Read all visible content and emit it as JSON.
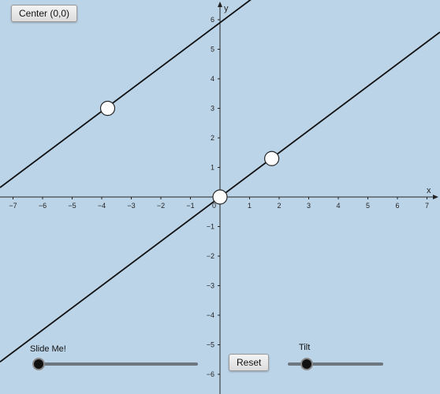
{
  "buttons": {
    "center_label": "Center (0,0)",
    "reset_label": "Reset"
  },
  "axes": {
    "xlabel": "x",
    "ylabel": "y",
    "xlim": [
      -7.3,
      7.3
    ],
    "ylim": [
      -6.5,
      6.5
    ]
  },
  "x_ticks": [
    -7,
    -6,
    -5,
    -4,
    -3,
    -2,
    -1,
    1,
    2,
    3,
    4,
    5,
    6,
    7
  ],
  "y_ticks": [
    -6,
    -5,
    -4,
    -3,
    -2,
    -1,
    1,
    2,
    3,
    4,
    5,
    6
  ],
  "origin_label": "0",
  "lines": [
    {
      "name": "upper-line",
      "slope": 0.75,
      "intercept": 5.9,
      "color": "#111111"
    },
    {
      "name": "lower-line",
      "slope": 0.75,
      "intercept": 0,
      "color": "#111111"
    }
  ],
  "points": [
    {
      "name": "point-upper",
      "x": -3.8,
      "y": 3.0
    },
    {
      "name": "point-origin",
      "x": 0,
      "y": 0
    },
    {
      "name": "point-lower",
      "x": 1.75,
      "y": 1.3
    }
  ],
  "sliders": {
    "slide": {
      "label": "Slide Me!",
      "value": 0
    },
    "tilt": {
      "label": "Tilt",
      "value": 0.2
    }
  }
}
